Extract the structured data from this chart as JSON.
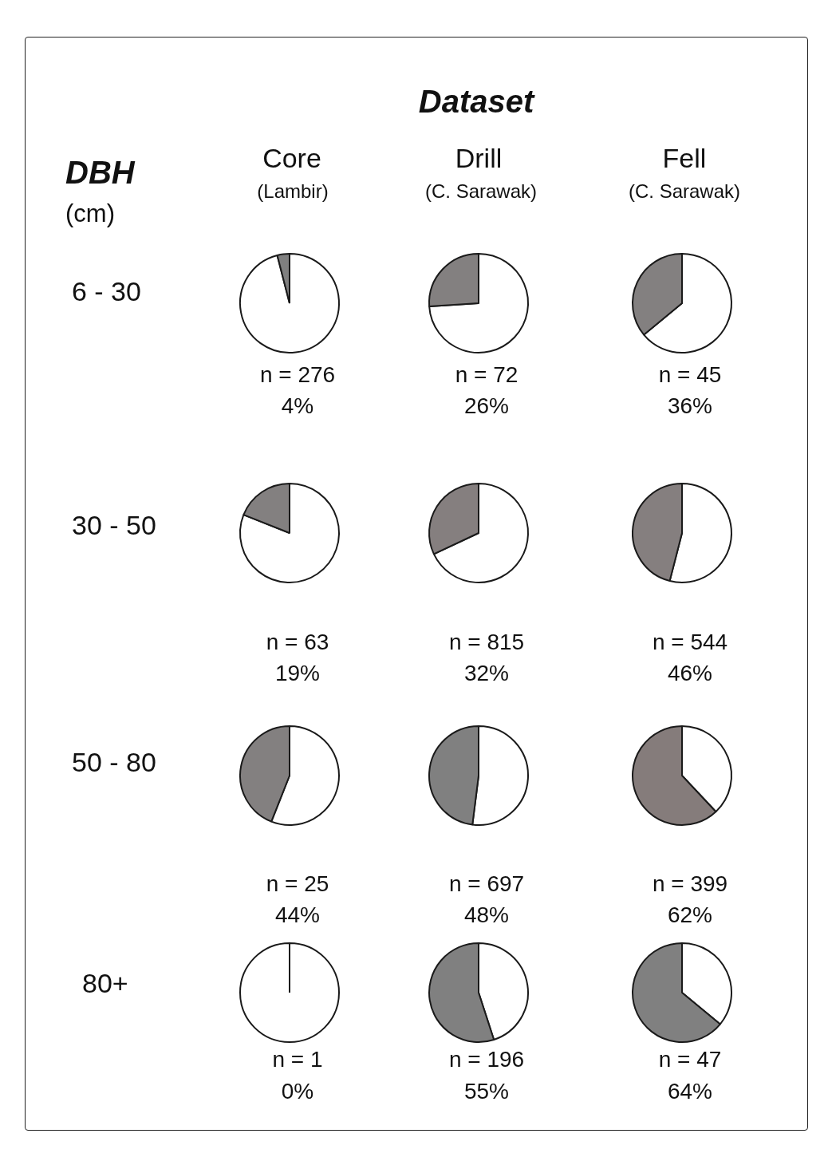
{
  "chart_data": [
    {
      "type": "other",
      "title": "Dataset",
      "ylabel": "DBH",
      "categories": [
        "Core",
        "Drill",
        "Fell"
      ],
      "y_categories": [
        "6 - 30",
        "30 - 50",
        "50 - 80",
        "80+"
      ],
      "annotations": [
        "(Lambir)",
        "(C. Sarawak)",
        "(C. Sarawak)",
        "(cm)"
      ]
    },
    {
      "type": "pie",
      "categories": [
        null,
        null
      ],
      "values": [
        96,
        4
      ],
      "colors": [
        "#ffffff",
        "#808080"
      ],
      "annotations": [
        "n = 276",
        "4%"
      ]
    },
    {
      "type": "pie",
      "categories": [
        null,
        null
      ],
      "values": [
        74,
        26
      ],
      "colors": [
        "#ffffff",
        "#838080"
      ],
      "annotations": [
        "n = 72",
        "26%"
      ]
    },
    {
      "type": "pie",
      "categories": [
        null,
        null
      ],
      "values": [
        64,
        36
      ],
      "colors": [
        "#ffffff",
        "#838080"
      ],
      "annotations": [
        "n = 45",
        "36%"
      ]
    },
    {
      "type": "pie",
      "categories": [
        null,
        null
      ],
      "values": [
        81,
        19
      ],
      "colors": [
        "#ffffff",
        "#838080"
      ],
      "annotations": [
        "n = 63",
        "19%"
      ]
    },
    {
      "type": "pie",
      "categories": [
        null,
        null
      ],
      "values": [
        68,
        32
      ],
      "colors": [
        "#ffffff",
        "#857f7f"
      ],
      "annotations": [
        "n = 815",
        "32%"
      ]
    },
    {
      "type": "pie",
      "categories": [
        null,
        null
      ],
      "values": [
        54,
        46
      ],
      "colors": [
        "#ffffff",
        "#857f7f"
      ],
      "annotations": [
        "n = 544",
        "46%"
      ]
    },
    {
      "type": "pie",
      "categories": [
        null,
        null
      ],
      "values": [
        56,
        44
      ],
      "colors": [
        "#ffffff",
        "#838080"
      ],
      "annotations": [
        "n = 25",
        "44%"
      ]
    },
    {
      "type": "pie",
      "categories": [
        null,
        null
      ],
      "values": [
        52,
        48
      ],
      "colors": [
        "#ffffff",
        "#808080"
      ],
      "annotations": [
        "n = 697",
        "48%"
      ]
    },
    {
      "type": "pie",
      "categories": [
        null,
        null
      ],
      "values": [
        38,
        62
      ],
      "colors": [
        "#ffffff",
        "#857c7b"
      ],
      "annotations": [
        "n = 399",
        "62%"
      ]
    },
    {
      "type": "pie",
      "categories": [
        null,
        null
      ],
      "values": [
        100,
        0
      ],
      "colors": [
        "#ffffff",
        "#808080"
      ],
      "annotations": [
        "n = 1",
        "0%"
      ]
    },
    {
      "type": "pie",
      "categories": [
        null,
        null
      ],
      "values": [
        45,
        55
      ],
      "colors": [
        "#ffffff",
        "#808080"
      ],
      "annotations": [
        "n = 196",
        "55%"
      ]
    },
    {
      "type": "pie",
      "categories": [
        null,
        null
      ],
      "values": [
        36,
        64
      ],
      "colors": [
        "#ffffff",
        "#808080"
      ],
      "annotations": [
        "n = 47",
        "64%"
      ]
    }
  ]
}
